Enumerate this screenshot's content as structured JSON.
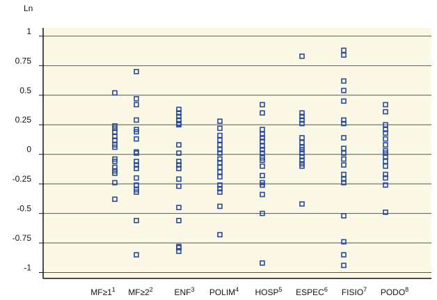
{
  "chart_data": {
    "type": "strip",
    "y_label": "Ln",
    "categories": [
      "MF≥1",
      "MF≥2",
      "ENF",
      "POLIM",
      "HOSP",
      "ESPEC",
      "FISIO",
      "PODO"
    ],
    "superscripts": [
      "1",
      "2",
      "3",
      "4",
      "5",
      "6",
      "7",
      "8"
    ],
    "values": [
      [
        0.52,
        0.24,
        0.22,
        0.19,
        0.15,
        0.12,
        0.08,
        0.06,
        -0.04,
        -0.06,
        -0.11,
        -0.14,
        -0.16,
        -0.24,
        -0.38
      ],
      [
        0.7,
        0.47,
        0.42,
        0.29,
        0.21,
        0.19,
        0.13,
        0.02,
        0.01,
        -0.06,
        -0.09,
        -0.12,
        -0.2,
        -0.26,
        -0.3,
        -0.32,
        -0.56,
        -0.85
      ],
      [
        0.38,
        0.35,
        0.32,
        0.29,
        0.26,
        0.25,
        0.08,
        0.01,
        -0.06,
        -0.09,
        -0.12,
        -0.21,
        -0.27,
        -0.45,
        -0.56,
        -0.78,
        -0.79,
        -0.82
      ],
      [
        0.28,
        0.22,
        0.16,
        0.12,
        0.08,
        0.04,
        0.01,
        -0.04,
        -0.07,
        -0.11,
        -0.15,
        -0.19,
        -0.26,
        -0.29,
        -0.32,
        -0.44,
        -0.68
      ],
      [
        0.42,
        0.35,
        0.21,
        0.17,
        0.14,
        0.11,
        0.07,
        0.04,
        0.01,
        -0.03,
        -0.05,
        -0.1,
        -0.18,
        -0.24,
        -0.26,
        -0.34,
        -0.5,
        -0.92
      ],
      [
        0.83,
        0.35,
        0.32,
        0.29,
        0.26,
        0.14,
        0.1,
        0.06,
        0.04,
        0.01,
        -0.02,
        -0.05,
        -0.08,
        -0.1,
        -0.42
      ],
      [
        0.88,
        0.84,
        0.62,
        0.54,
        0.45,
        0.29,
        0.26,
        0.14,
        0.05,
        0.01,
        -0.04,
        -0.09,
        -0.17,
        -0.21,
        -0.24,
        -0.52,
        -0.74,
        -0.85,
        -0.94
      ],
      [
        0.42,
        0.36,
        0.25,
        0.21,
        0.18,
        0.13,
        0.08,
        0.03,
        0.01,
        -0.02,
        -0.06,
        -0.1,
        -0.17,
        -0.2,
        -0.26,
        -0.49
      ]
    ],
    "color": "#2448a0",
    "ylim": [
      -1.05,
      1.07
    ],
    "yticks": [
      1,
      0.75,
      0.5,
      0.25,
      0,
      -0.25,
      -0.5,
      -0.75,
      -1
    ],
    "grid": true
  }
}
